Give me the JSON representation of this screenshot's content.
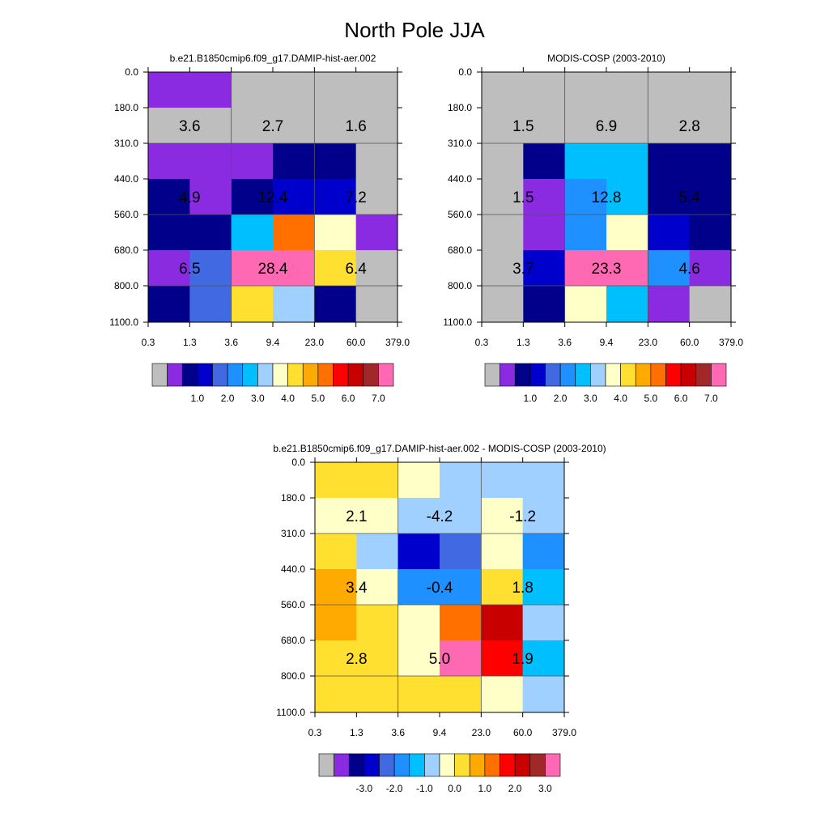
{
  "title": "North Pole JJA",
  "chart_data": [
    {
      "type": "heatmap",
      "title": "b.e21.B1850cmip6.f09_g17.DAMIP-hist-aer.002",
      "x_ticks": [
        "0.3",
        "1.3",
        "3.6",
        "9.4",
        "23.0",
        "60.0",
        "379.0"
      ],
      "y_ticks": [
        "0.0",
        "180.0",
        "310.0",
        "440.0",
        "560.0",
        "680.0",
        "800.0",
        "1100.0"
      ],
      "x_label": "",
      "y_label": "",
      "cell_colors": [
        [
          "#8A2BE2",
          "#8A2BE2",
          "#BEBEBE",
          "#BEBEBE",
          "#BEBEBE",
          "#BEBEBE"
        ],
        [
          "#BEBEBE",
          "#BEBEBE",
          "#BEBEBE",
          "#BEBEBE",
          "#BEBEBE",
          "#BEBEBE"
        ],
        [
          "#8A2BE2",
          "#8A2BE2",
          "#8A2BE2",
          "#00008B",
          "#00008B",
          "#BEBEBE"
        ],
        [
          "#00008B",
          "#8A2BE2",
          "#00008B",
          "#0000CD",
          "#0000CD",
          "#BEBEBE"
        ],
        [
          "#00008B",
          "#00008B",
          "#00BFFF",
          "#FF7000",
          "#FFFFC8",
          "#8A2BE2"
        ],
        [
          "#8A2BE2",
          "#4169E1",
          "#FF69B4",
          "#FF69B4",
          "#FFE030",
          "#BEBEBE"
        ],
        [
          "#00008B",
          "#4169E1",
          "#FFE030",
          "#A0D0FF",
          "#00008B",
          "#BEBEBE"
        ]
      ],
      "annotations": [
        {
          "col": 0,
          "row": 1,
          "text": "3.6"
        },
        {
          "col": 1,
          "row": 1,
          "text": "2.7"
        },
        {
          "col": 2,
          "row": 1,
          "text": "1.6"
        },
        {
          "col": 0,
          "row": 3,
          "text": "4.9"
        },
        {
          "col": 1,
          "row": 3,
          "text": "12.4"
        },
        {
          "col": 2,
          "row": 3,
          "text": "7.2"
        },
        {
          "col": 0,
          "row": 5,
          "text": "6.5"
        },
        {
          "col": 1,
          "row": 5,
          "text": "28.4"
        },
        {
          "col": 2,
          "row": 5,
          "text": "6.4"
        }
      ],
      "colorbar": {
        "colors": [
          "#BEBEBE",
          "#8A2BE2",
          "#00008B",
          "#0000CD",
          "#4169E1",
          "#1E90FF",
          "#00BFFF",
          "#A0D0FF",
          "#FFFFC8",
          "#FFE030",
          "#FFAA00",
          "#FF7000",
          "#FF0000",
          "#C80000",
          "#A02828",
          "#FF69B4"
        ],
        "labels": [
          "1.0",
          "2.0",
          "3.0",
          "4.0",
          "5.0",
          "6.0",
          "7.0"
        ]
      }
    },
    {
      "type": "heatmap",
      "title": "MODIS-COSP (2003-2010)",
      "x_ticks": [
        "0.3",
        "1.3",
        "3.6",
        "9.4",
        "23.0",
        "60.0",
        "379.0"
      ],
      "y_ticks": [
        "0.0",
        "180.0",
        "310.0",
        "440.0",
        "560.0",
        "680.0",
        "800.0",
        "1100.0"
      ],
      "x_label": "",
      "y_label": "",
      "cell_colors": [
        [
          "#BEBEBE",
          "#BEBEBE",
          "#BEBEBE",
          "#BEBEBE",
          "#BEBEBE",
          "#BEBEBE"
        ],
        [
          "#BEBEBE",
          "#BEBEBE",
          "#BEBEBE",
          "#BEBEBE",
          "#BEBEBE",
          "#BEBEBE"
        ],
        [
          "#BEBEBE",
          "#00008B",
          "#00BFFF",
          "#00BFFF",
          "#00008B",
          "#00008B"
        ],
        [
          "#BEBEBE",
          "#8A2BE2",
          "#1E90FF",
          "#00BFFF",
          "#00008B",
          "#00008B"
        ],
        [
          "#BEBEBE",
          "#8A2BE2",
          "#1E90FF",
          "#FFFFC8",
          "#0000CD",
          "#00008B"
        ],
        [
          "#BEBEBE",
          "#0000CD",
          "#FF69B4",
          "#FF69B4",
          "#1E90FF",
          "#8A2BE2"
        ],
        [
          "#BEBEBE",
          "#00008B",
          "#FFFFC8",
          "#00BFFF",
          "#8A2BE2",
          "#BEBEBE"
        ]
      ],
      "annotations": [
        {
          "col": 0,
          "row": 1,
          "text": "1.5"
        },
        {
          "col": 1,
          "row": 1,
          "text": "6.9"
        },
        {
          "col": 2,
          "row": 1,
          "text": "2.8"
        },
        {
          "col": 0,
          "row": 3,
          "text": "1.5"
        },
        {
          "col": 1,
          "row": 3,
          "text": "12.8"
        },
        {
          "col": 2,
          "row": 3,
          "text": "5.4"
        },
        {
          "col": 0,
          "row": 5,
          "text": "3.7"
        },
        {
          "col": 1,
          "row": 5,
          "text": "23.3"
        },
        {
          "col": 2,
          "row": 5,
          "text": "4.6"
        }
      ],
      "colorbar": {
        "colors": [
          "#BEBEBE",
          "#8A2BE2",
          "#00008B",
          "#0000CD",
          "#4169E1",
          "#1E90FF",
          "#00BFFF",
          "#A0D0FF",
          "#FFFFC8",
          "#FFE030",
          "#FFAA00",
          "#FF7000",
          "#FF0000",
          "#C80000",
          "#A02828",
          "#FF69B4"
        ],
        "labels": [
          "1.0",
          "2.0",
          "3.0",
          "4.0",
          "5.0",
          "6.0",
          "7.0"
        ]
      }
    },
    {
      "type": "heatmap",
      "title": "b.e21.B1850cmip6.f09_g17.DAMIP-hist-aer.002 - MODIS-COSP (2003-2010)",
      "x_ticks": [
        "0.3",
        "1.3",
        "3.6",
        "9.4",
        "23.0",
        "60.0",
        "379.0"
      ],
      "y_ticks": [
        "0.0",
        "180.0",
        "310.0",
        "440.0",
        "560.0",
        "680.0",
        "800.0",
        "1100.0"
      ],
      "x_label": "",
      "y_label": "",
      "cell_colors": [
        [
          "#FFE030",
          "#FFE030",
          "#FFFFC8",
          "#A0D0FF",
          "#A0D0FF",
          "#A0D0FF"
        ],
        [
          "#FFFFC8",
          "#FFFFC8",
          "#A0D0FF",
          "#A0D0FF",
          "#FFFFC8",
          "#A0D0FF"
        ],
        [
          "#FFE030",
          "#A0D0FF",
          "#0000CD",
          "#4169E1",
          "#FFFFC8",
          "#1E90FF"
        ],
        [
          "#FFAA00",
          "#FFFFC8",
          "#1E90FF",
          "#1E90FF",
          "#FFE030",
          "#00BFFF"
        ],
        [
          "#FFAA00",
          "#FFE030",
          "#FFFFC8",
          "#FF7000",
          "#C80000",
          "#A0D0FF"
        ],
        [
          "#FFE030",
          "#FFE030",
          "#FFFFC8",
          "#FF69B4",
          "#FF0000",
          "#00BFFF"
        ],
        [
          "#FFE030",
          "#FFE030",
          "#FFE030",
          "#FFE030",
          "#FFFFC8",
          "#A0D0FF"
        ]
      ],
      "annotations": [
        {
          "col": 0,
          "row": 1,
          "text": "2.1"
        },
        {
          "col": 1,
          "row": 1,
          "text": "-4.2"
        },
        {
          "col": 2,
          "row": 1,
          "text": "-1.2"
        },
        {
          "col": 0,
          "row": 3,
          "text": "3.4"
        },
        {
          "col": 1,
          "row": 3,
          "text": "-0.4"
        },
        {
          "col": 2,
          "row": 3,
          "text": "1.8"
        },
        {
          "col": 0,
          "row": 5,
          "text": "2.8"
        },
        {
          "col": 1,
          "row": 5,
          "text": "5.0"
        },
        {
          "col": 2,
          "row": 5,
          "text": "1.9"
        }
      ],
      "colorbar": {
        "colors": [
          "#BEBEBE",
          "#8A2BE2",
          "#00008B",
          "#0000CD",
          "#4169E1",
          "#1E90FF",
          "#00BFFF",
          "#A0D0FF",
          "#FFFFC8",
          "#FFE030",
          "#FFAA00",
          "#FF7000",
          "#FF0000",
          "#C80000",
          "#A02828",
          "#FF69B4"
        ],
        "labels": [
          "-3.0",
          "-2.0",
          "-1.0",
          "0.0",
          "1.0",
          "2.0",
          "3.0"
        ]
      }
    }
  ]
}
